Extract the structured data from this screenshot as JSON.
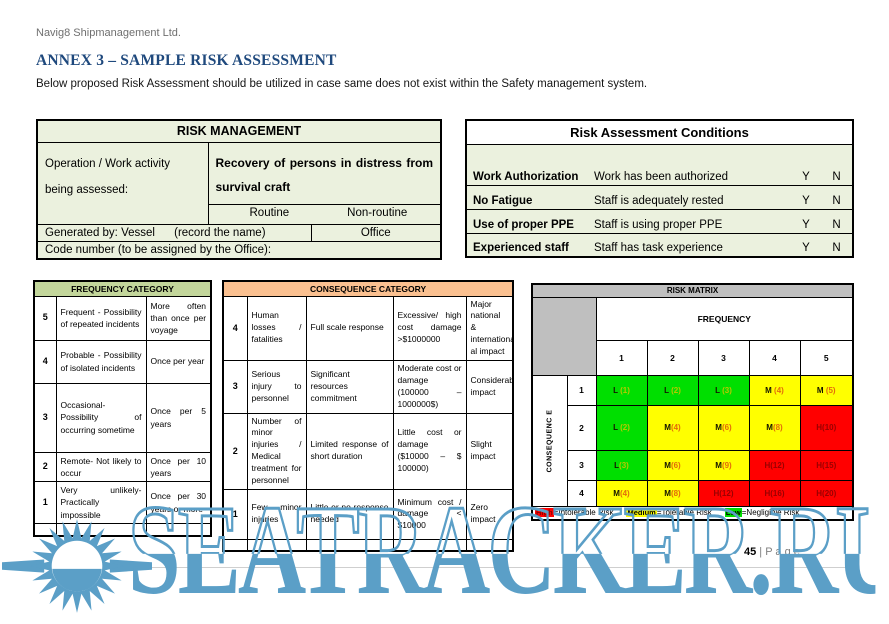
{
  "header": {
    "company": "Navig8 Shipmanagement Ltd.",
    "annex_title": "ANNEX 3 – SAMPLE RISK ASSESSMENT",
    "intro": "Below proposed Risk Assessment should be utilized in case same does not exist within the Safety management system."
  },
  "risk_management": {
    "title": "RISK MANAGEMENT",
    "operation_label": "Operation / Work activity being assessed:",
    "operation_value": "Recovery of  persons in distress from survival craft",
    "routine_label": "Routine",
    "non_routine_label": "Non-routine",
    "generated_by": "Generated by: Vessel      (record the name)",
    "office_label": "Office",
    "code_number_label": "Code number (to be assigned by the Office):"
  },
  "risk_conditions": {
    "title": "Risk Assessment Conditions",
    "rows": [
      {
        "name": "Work Authorization",
        "description": "Work has been authorized",
        "yes": "Y",
        "no": "N"
      },
      {
        "name": "No Fatigue",
        "description": "Staff is adequately rested",
        "yes": "Y",
        "no": "N"
      },
      {
        "name": "Use of proper PPE",
        "description": "Staff is using proper PPE",
        "yes": "Y",
        "no": "N"
      },
      {
        "name": "Experienced staff",
        "description": "Staff has task experience",
        "yes": "Y",
        "no": "N"
      }
    ]
  },
  "frequency_category": {
    "title": "FREQUENCY CATEGORY",
    "rows": [
      {
        "level": "5",
        "description": "Frequent -  Possibility of repeated incidents",
        "frequency": "More often than once per voyage"
      },
      {
        "level": "4",
        "description": "Probable -  Possibility of isolated incidents",
        "frequency": "Once per year"
      },
      {
        "level": "3",
        "description": "Occasional- Possibility of occurring sometime",
        "frequency": "Once per 5 years"
      },
      {
        "level": "2",
        "description": "Remote- Not likely to occur",
        "frequency": "Once per 10 years"
      },
      {
        "level": "1",
        "description": "Very unlikely- Practically impossible",
        "frequency": "Once per 30 years or more"
      },
      {
        "level": "",
        "description": "",
        "frequency": ""
      }
    ]
  },
  "consequence_category": {
    "title": "CONSEQUENCE CATEGORY",
    "rows": [
      {
        "level": "4",
        "human": "Human losses / fatalities",
        "response": "Full scale response",
        "cost": "Excessive/ high cost damage >$1000000",
        "impact": "Major national & international al impact"
      },
      {
        "level": "3",
        "human": "Serious injury to personnel",
        "response": "Significant resources commitment",
        "cost": "Moderate cost or damage (100000 – 1000000$)",
        "impact": "Considerable impact"
      },
      {
        "level": "2",
        "human": "Number of minor injuries / Medical treatment for personnel",
        "response": "Limited response of short duration",
        "cost": "Little cost or damage ($10000 – $ 100000)",
        "impact": "Slight impact"
      },
      {
        "level": "1",
        "human": "Few minor injuries",
        "response": "Little or no response needed",
        "cost": "Minimum cost / damage < $10000",
        "impact": "Zero impact"
      },
      {
        "level": "",
        "human": "",
        "response": "",
        "cost": "",
        "impact": ""
      }
    ]
  },
  "risk_matrix": {
    "title": "RISK MATRIX",
    "frequency_label": "FREQUENCY",
    "consequence_label": "CONSEQUENC E",
    "frequency_levels": [
      "1",
      "2",
      "3",
      "4",
      "5"
    ],
    "rows": [
      {
        "consequence": "1",
        "cells": [
          {
            "label": "L (1)",
            "level": "low"
          },
          {
            "label": "L (2)",
            "level": "low"
          },
          {
            "label": "L (3)",
            "level": "low"
          },
          {
            "label": "M (4)",
            "level": "medium"
          },
          {
            "label": "M (5)",
            "level": "medium"
          }
        ]
      },
      {
        "consequence": "2",
        "cells": [
          {
            "label": "L (2)",
            "level": "low"
          },
          {
            "label": "M(4)",
            "level": "medium"
          },
          {
            "label": "M(6)",
            "level": "medium"
          },
          {
            "label": "M(8)",
            "level": "medium"
          },
          {
            "label": "H(10)",
            "level": "high"
          }
        ]
      },
      {
        "consequence": "3",
        "cells": [
          {
            "label": "L(3)",
            "level": "low"
          },
          {
            "label": "M(6)",
            "level": "medium"
          },
          {
            "label": "M(9)",
            "level": "medium"
          },
          {
            "label": "H(12)",
            "level": "high"
          },
          {
            "label": "H(15)",
            "level": "high"
          }
        ]
      },
      {
        "consequence": "4",
        "cells": [
          {
            "label": "M(4)",
            "level": "medium"
          },
          {
            "label": "M(8)",
            "level": "medium"
          },
          {
            "label": "H(12)",
            "level": "high"
          },
          {
            "label": "H(16)",
            "level": "high"
          },
          {
            "label": "H(20)",
            "level": "high"
          }
        ]
      }
    ],
    "legend": [
      {
        "chip": "High",
        "level": "high",
        "text": "=Intolerable Risk"
      },
      {
        "chip": "Medium",
        "level": "medium",
        "text": "=Tolerable Risk"
      },
      {
        "chip": "Low",
        "level": "low",
        "text": "=Negligible Risk"
      }
    ],
    "level_colors": {
      "low": "#00df00",
      "medium": "#ffff00",
      "high": "#ff0000"
    },
    "letter_colors": {
      "low": "#141400",
      "medium": "#141400",
      "high": "#9a0000"
    },
    "value_colors": {
      "low": "#b7c800",
      "medium": "#e36c0a",
      "high": "#9a0000"
    },
    "chip_text_colors": {
      "low": "#000000",
      "medium": "#000000",
      "high": "#8b0000"
    }
  },
  "footer": {
    "page_number": "45",
    "page_word": " | P a g e"
  },
  "watermark": {
    "text": "SEATRACKER.RU",
    "color": "#5b9fc7"
  }
}
